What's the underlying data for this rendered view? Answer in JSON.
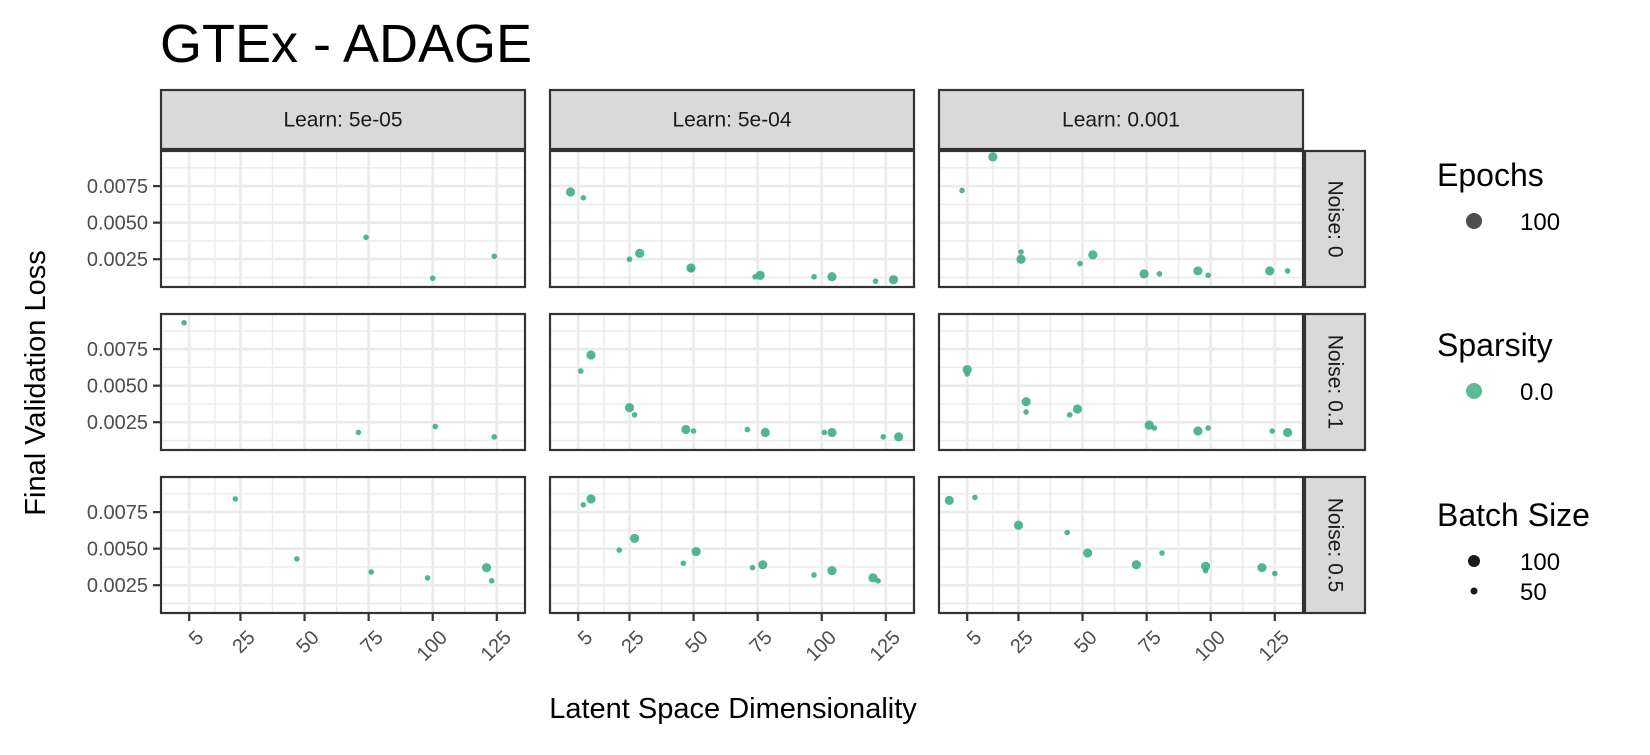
{
  "chart_data": {
    "type": "scatter",
    "title": "GTEx - ADAGE",
    "xlabel": "Latent Space Dimensionality",
    "ylabel": "Final Validation Loss",
    "facet_cols": [
      "Learn: 5e-05",
      "Learn: 5e-04",
      "Learn: 0.001"
    ],
    "facet_rows": [
      "Noise: 0",
      "Noise: 0.1",
      "Noise: 0.5"
    ],
    "x_ticks": [
      5,
      25,
      50,
      75,
      100,
      125
    ],
    "x_tick_labels": [
      "5",
      "25",
      "50",
      "75",
      "100",
      "125"
    ],
    "xlim": [
      -6,
      136
    ],
    "y_ticks": [
      0.0025,
      0.005,
      0.0075
    ],
    "y_tick_labels": [
      "0.0025",
      "0.0050",
      "0.0075"
    ],
    "ylim": [
      0.0006,
      0.0099
    ],
    "grid": true,
    "point_color": "#3fae84",
    "legend_position": "right",
    "legends": [
      {
        "title": "Epochs",
        "entries": [
          {
            "label": "100",
            "color": "#4d4d4d",
            "size": "large"
          }
        ]
      },
      {
        "title": "Sparsity",
        "entries": [
          {
            "label": "0.0",
            "color": "#3fae84",
            "size": "large"
          }
        ]
      },
      {
        "title": "Batch Size",
        "entries": [
          {
            "label": "100",
            "color": "#1a1a1a",
            "size": "medium"
          },
          {
            "label": "50",
            "color": "#1a1a1a",
            "size": "small"
          }
        ]
      }
    ],
    "panels": [
      {
        "col": 0,
        "row": 0,
        "points": [
          {
            "x": 74,
            "y": 0.004,
            "batch": 50
          },
          {
            "x": 100,
            "y": 0.0012,
            "batch": 50
          },
          {
            "x": 124,
            "y": 0.0027,
            "batch": 50
          }
        ]
      },
      {
        "col": 1,
        "row": 0,
        "points": [
          {
            "x": 2,
            "y": 0.0071,
            "batch": 100
          },
          {
            "x": 7,
            "y": 0.0067,
            "batch": 50
          },
          {
            "x": 25,
            "y": 0.0025,
            "batch": 50
          },
          {
            "x": 29,
            "y": 0.0029,
            "batch": 100
          },
          {
            "x": 49,
            "y": 0.0019,
            "batch": 100
          },
          {
            "x": 49,
            "y": 0.0018,
            "batch": 50
          },
          {
            "x": 74,
            "y": 0.0013,
            "batch": 50
          },
          {
            "x": 76,
            "y": 0.0014,
            "batch": 100
          },
          {
            "x": 97,
            "y": 0.0013,
            "batch": 50
          },
          {
            "x": 104,
            "y": 0.0013,
            "batch": 100
          },
          {
            "x": 121,
            "y": 0.001,
            "batch": 50
          },
          {
            "x": 128,
            "y": 0.0011,
            "batch": 100
          }
        ]
      },
      {
        "col": 2,
        "row": 0,
        "points": [
          {
            "x": 3,
            "y": 0.0072,
            "batch": 50
          },
          {
            "x": 15,
            "y": 0.0095,
            "batch": 100
          },
          {
            "x": 26,
            "y": 0.003,
            "batch": 50
          },
          {
            "x": 26,
            "y": 0.0025,
            "batch": 100
          },
          {
            "x": 49,
            "y": 0.0022,
            "batch": 50
          },
          {
            "x": 54,
            "y": 0.0028,
            "batch": 100
          },
          {
            "x": 74,
            "y": 0.0015,
            "batch": 100
          },
          {
            "x": 80,
            "y": 0.0015,
            "batch": 50
          },
          {
            "x": 95,
            "y": 0.0017,
            "batch": 100
          },
          {
            "x": 99,
            "y": 0.0014,
            "batch": 50
          },
          {
            "x": 123,
            "y": 0.0017,
            "batch": 100
          },
          {
            "x": 130,
            "y": 0.0017,
            "batch": 50
          }
        ]
      },
      {
        "col": 0,
        "row": 1,
        "points": [
          {
            "x": 3,
            "y": 0.0093,
            "batch": 50
          },
          {
            "x": 71,
            "y": 0.0018,
            "batch": 50
          },
          {
            "x": 101,
            "y": 0.0022,
            "batch": 50
          },
          {
            "x": 124,
            "y": 0.0015,
            "batch": 50
          }
        ]
      },
      {
        "col": 1,
        "row": 1,
        "points": [
          {
            "x": 6,
            "y": 0.006,
            "batch": 50
          },
          {
            "x": 10,
            "y": 0.0071,
            "batch": 100
          },
          {
            "x": 25,
            "y": 0.0035,
            "batch": 100
          },
          {
            "x": 27,
            "y": 0.003,
            "batch": 50
          },
          {
            "x": 47,
            "y": 0.002,
            "batch": 100
          },
          {
            "x": 50,
            "y": 0.0019,
            "batch": 50
          },
          {
            "x": 71,
            "y": 0.002,
            "batch": 50
          },
          {
            "x": 78,
            "y": 0.0018,
            "batch": 100
          },
          {
            "x": 101,
            "y": 0.0018,
            "batch": 50
          },
          {
            "x": 104,
            "y": 0.0018,
            "batch": 100
          },
          {
            "x": 124,
            "y": 0.0015,
            "batch": 50
          },
          {
            "x": 130,
            "y": 0.0015,
            "batch": 100
          }
        ]
      },
      {
        "col": 2,
        "row": 1,
        "points": [
          {
            "x": 5,
            "y": 0.0061,
            "batch": 100
          },
          {
            "x": 5,
            "y": 0.0058,
            "batch": 50
          },
          {
            "x": 28,
            "y": 0.0039,
            "batch": 100
          },
          {
            "x": 28,
            "y": 0.0032,
            "batch": 50
          },
          {
            "x": 45,
            "y": 0.003,
            "batch": 50
          },
          {
            "x": 48,
            "y": 0.0034,
            "batch": 100
          },
          {
            "x": 76,
            "y": 0.0023,
            "batch": 100
          },
          {
            "x": 78,
            "y": 0.0021,
            "batch": 50
          },
          {
            "x": 95,
            "y": 0.0019,
            "batch": 100
          },
          {
            "x": 99,
            "y": 0.0021,
            "batch": 50
          },
          {
            "x": 124,
            "y": 0.0019,
            "batch": 50
          },
          {
            "x": 130,
            "y": 0.0018,
            "batch": 100
          }
        ]
      },
      {
        "col": 0,
        "row": 2,
        "points": [
          {
            "x": 23,
            "y": 0.0084,
            "batch": 50
          },
          {
            "x": 47,
            "y": 0.0043,
            "batch": 50
          },
          {
            "x": 76,
            "y": 0.0034,
            "batch": 50
          },
          {
            "x": 98,
            "y": 0.003,
            "batch": 50
          },
          {
            "x": 121,
            "y": 0.0037,
            "batch": 100
          },
          {
            "x": 123,
            "y": 0.0028,
            "batch": 50
          }
        ]
      },
      {
        "col": 1,
        "row": 2,
        "points": [
          {
            "x": 7,
            "y": 0.008,
            "batch": 50
          },
          {
            "x": 10,
            "y": 0.0084,
            "batch": 100
          },
          {
            "x": 21,
            "y": 0.0049,
            "batch": 50
          },
          {
            "x": 27,
            "y": 0.0057,
            "batch": 100
          },
          {
            "x": 46,
            "y": 0.004,
            "batch": 50
          },
          {
            "x": 51,
            "y": 0.0048,
            "batch": 100
          },
          {
            "x": 73,
            "y": 0.0037,
            "batch": 50
          },
          {
            "x": 77,
            "y": 0.0039,
            "batch": 100
          },
          {
            "x": 97,
            "y": 0.0032,
            "batch": 50
          },
          {
            "x": 104,
            "y": 0.0035,
            "batch": 100
          },
          {
            "x": 120,
            "y": 0.003,
            "batch": 100
          },
          {
            "x": 122,
            "y": 0.0028,
            "batch": 50
          }
        ]
      },
      {
        "col": 2,
        "row": 2,
        "points": [
          {
            "x": -2,
            "y": 0.0083,
            "batch": 100
          },
          {
            "x": 8,
            "y": 0.0085,
            "batch": 50
          },
          {
            "x": 25,
            "y": 0.0066,
            "batch": 100
          },
          {
            "x": 44,
            "y": 0.0061,
            "batch": 50
          },
          {
            "x": 52,
            "y": 0.0047,
            "batch": 100
          },
          {
            "x": 71,
            "y": 0.0039,
            "batch": 100
          },
          {
            "x": 81,
            "y": 0.0047,
            "batch": 50
          },
          {
            "x": 98,
            "y": 0.0038,
            "batch": 100
          },
          {
            "x": 98,
            "y": 0.0035,
            "batch": 50
          },
          {
            "x": 120,
            "y": 0.0037,
            "batch": 100
          },
          {
            "x": 125,
            "y": 0.0033,
            "batch": 50
          }
        ]
      }
    ]
  }
}
